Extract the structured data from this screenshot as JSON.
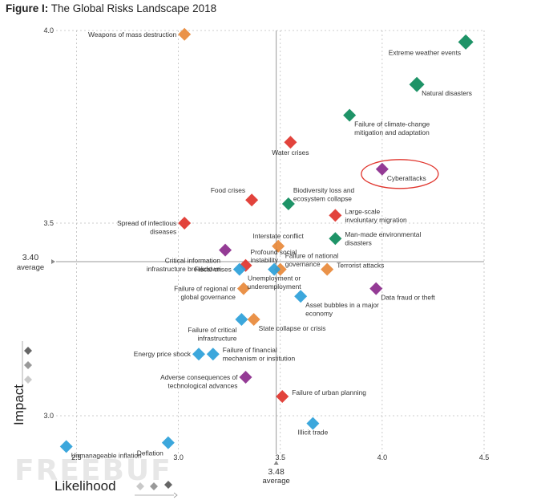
{
  "header": {
    "figure_label": "Figure I:",
    "title": "The Global Risks Landscape 2018"
  },
  "axes": {
    "impact_title": "Impact",
    "likelihood_title": "Likelihood"
  },
  "watermark": {
    "text": "FREEBUF"
  },
  "colors": {
    "economic": "#2b9fd9",
    "environmental": "#0b8a5a",
    "geopolitical": "#e8893a",
    "societal": "#e0332b",
    "technological": "#8b2a8c",
    "highlight_circle": "#e0332b",
    "grid": "#bdbdbd",
    "average_line": "#9a9a9a"
  },
  "chart_data": {
    "type": "scatter",
    "title": "The Global Risks Landscape 2018",
    "xlabel": "Likelihood",
    "ylabel": "Impact",
    "xlim": [
      2.4,
      4.5
    ],
    "ylim": [
      2.9,
      4.0
    ],
    "x_ticks": [
      {
        "value": 2.5,
        "label": "2.5"
      },
      {
        "value": 3.0,
        "label": "3.0"
      },
      {
        "value": 3.5,
        "label": "3.5"
      },
      {
        "value": 4.0,
        "label": "4.0"
      },
      {
        "value": 4.5,
        "label": "4.5"
      }
    ],
    "y_ticks": [
      {
        "value": 3.0,
        "label": "3.0"
      },
      {
        "value": 3.5,
        "label": "3.5"
      },
      {
        "value": 4.0,
        "label": "4.0"
      }
    ],
    "average_x": {
      "value": 3.48,
      "label": "3.48",
      "sublabel": "average"
    },
    "average_y": {
      "value": 3.4,
      "label": "3.40",
      "sublabel": "average"
    },
    "highlight": "Cyberattacks",
    "points": [
      {
        "name": "Weapons of mass destruction",
        "lines": [
          "Weapons of mass destruction"
        ],
        "x": 3.03,
        "y": 3.99,
        "category": "geopolitical",
        "label_pos": "left"
      },
      {
        "name": "Extreme weather events",
        "lines": [
          "Extreme weather events"
        ],
        "x": 4.41,
        "y": 3.97,
        "category": "environmental",
        "label_pos": "below-left"
      },
      {
        "name": "Natural disasters",
        "lines": [
          "Natural disasters"
        ],
        "x": 4.17,
        "y": 3.86,
        "category": "environmental",
        "label_pos": "below-right"
      },
      {
        "name": "Failure of climate-change mitigation and adaptation",
        "lines": [
          "Failure of climate-change",
          "mitigation and adaptation"
        ],
        "x": 3.84,
        "y": 3.78,
        "category": "environmental",
        "label_pos": "below-right"
      },
      {
        "name": "Water crises",
        "lines": [
          "Water crises"
        ],
        "x": 3.55,
        "y": 3.71,
        "category": "societal",
        "label_pos": "below-center"
      },
      {
        "name": "Cyberattacks",
        "lines": [
          "Cyberattacks"
        ],
        "x": 4.0,
        "y": 3.64,
        "category": "technological",
        "label_pos": "below-right"
      },
      {
        "name": "Food crises",
        "lines": [
          "Food crises"
        ],
        "x": 3.36,
        "y": 3.56,
        "category": "societal",
        "label_pos": "left-up"
      },
      {
        "name": "Biodiversity loss and ecosystem collapse",
        "lines": [
          "Biodiversity loss and",
          "ecosystem collapse"
        ],
        "x": 3.54,
        "y": 3.55,
        "category": "environmental",
        "label_pos": "up-right"
      },
      {
        "name": "Large-scale involuntary migration",
        "lines": [
          "Large-scale",
          "involuntary migration"
        ],
        "x": 3.77,
        "y": 3.52,
        "category": "societal",
        "label_pos": "right"
      },
      {
        "name": "Spread of infectious diseases",
        "lines": [
          "Spread of infectious",
          "diseases"
        ],
        "x": 3.03,
        "y": 3.5,
        "category": "societal",
        "label_pos": "left"
      },
      {
        "name": "Interstate conflict",
        "lines": [
          "Interstate conflict"
        ],
        "x": 3.49,
        "y": 3.44,
        "category": "geopolitical",
        "label_pos": "up"
      },
      {
        "name": "Man-made environmental disasters",
        "lines": [
          "Man-made environmental",
          "disasters"
        ],
        "x": 3.77,
        "y": 3.46,
        "category": "environmental",
        "label_pos": "right"
      },
      {
        "name": "Critical information infrastructure breakdown",
        "lines": [
          "Critical information",
          "infrastructure breakdown"
        ],
        "x": 3.23,
        "y": 3.43,
        "category": "technological",
        "label_pos": "below-left"
      },
      {
        "name": "Profound social instability",
        "lines": [
          "Profound social",
          "instability"
        ],
        "x": 3.33,
        "y": 3.39,
        "category": "societal",
        "label_pos": "up-right"
      },
      {
        "name": "Fiscal crises",
        "lines": [
          "Fiscal crises"
        ],
        "x": 3.3,
        "y": 3.38,
        "category": "economic",
        "label_pos": "left"
      },
      {
        "name": "Failure of national governance",
        "lines": [
          "Failure of national",
          "governance"
        ],
        "x": 3.5,
        "y": 3.38,
        "category": "geopolitical",
        "label_pos": "up-right"
      },
      {
        "name": "Terrorist attacks",
        "lines": [
          "Terrorist attacks"
        ],
        "x": 3.73,
        "y": 3.38,
        "category": "geopolitical",
        "label_pos": "right"
      },
      {
        "name": "Unemployment or underemployment",
        "lines": [
          "Unemployment or",
          "underemployment"
        ],
        "x": 3.47,
        "y": 3.38,
        "category": "economic",
        "label_pos": "below"
      },
      {
        "name": "Failure of regional or global governance",
        "lines": [
          "Failure of regional or",
          "global governance"
        ],
        "x": 3.32,
        "y": 3.33,
        "category": "geopolitical",
        "label_pos": "left"
      },
      {
        "name": "Asset bubbles in a major economy",
        "lines": [
          "Asset bubbles in a major",
          "economy"
        ],
        "x": 3.6,
        "y": 3.31,
        "category": "economic",
        "label_pos": "below-right"
      },
      {
        "name": "Data fraud or theft",
        "lines": [
          "Data fraud or theft"
        ],
        "x": 3.97,
        "y": 3.33,
        "category": "technological",
        "label_pos": "below-right"
      },
      {
        "name": "Failure of critical infrastructure",
        "lines": [
          "Failure of critical",
          "infrastructure"
        ],
        "x": 3.31,
        "y": 3.25,
        "category": "economic",
        "label_pos": "below-left"
      },
      {
        "name": "State collapse or crisis",
        "lines": [
          "State collapse or crisis"
        ],
        "x": 3.37,
        "y": 3.25,
        "category": "geopolitical",
        "label_pos": "below-right"
      },
      {
        "name": "Energy price shock",
        "lines": [
          "Energy price shock"
        ],
        "x": 3.1,
        "y": 3.16,
        "category": "economic",
        "label_pos": "left"
      },
      {
        "name": "Failure of financial mechanism or institution",
        "lines": [
          "Failure of financial",
          "mechanism or institution"
        ],
        "x": 3.17,
        "y": 3.16,
        "category": "economic",
        "label_pos": "right"
      },
      {
        "name": "Adverse consequences of technological advances",
        "lines": [
          "Adverse consequences of",
          "technological advances"
        ],
        "x": 3.33,
        "y": 3.1,
        "category": "technological",
        "label_pos": "left"
      },
      {
        "name": "Failure of urban planning",
        "lines": [
          "Failure of urban planning"
        ],
        "x": 3.51,
        "y": 3.05,
        "category": "societal",
        "label_pos": "right"
      },
      {
        "name": "Illicit trade",
        "lines": [
          "Illicit trade"
        ],
        "x": 3.66,
        "y": 2.98,
        "category": "economic",
        "label_pos": "below"
      },
      {
        "name": "Unmanageable inflation",
        "lines": [
          "Unmanageable inflation"
        ],
        "x": 2.45,
        "y": 2.92,
        "category": "economic",
        "label_pos": "below-right"
      },
      {
        "name": "Deflation",
        "lines": [
          "Deflation"
        ],
        "x": 2.95,
        "y": 2.93,
        "category": "economic",
        "label_pos": "below-left"
      }
    ]
  }
}
